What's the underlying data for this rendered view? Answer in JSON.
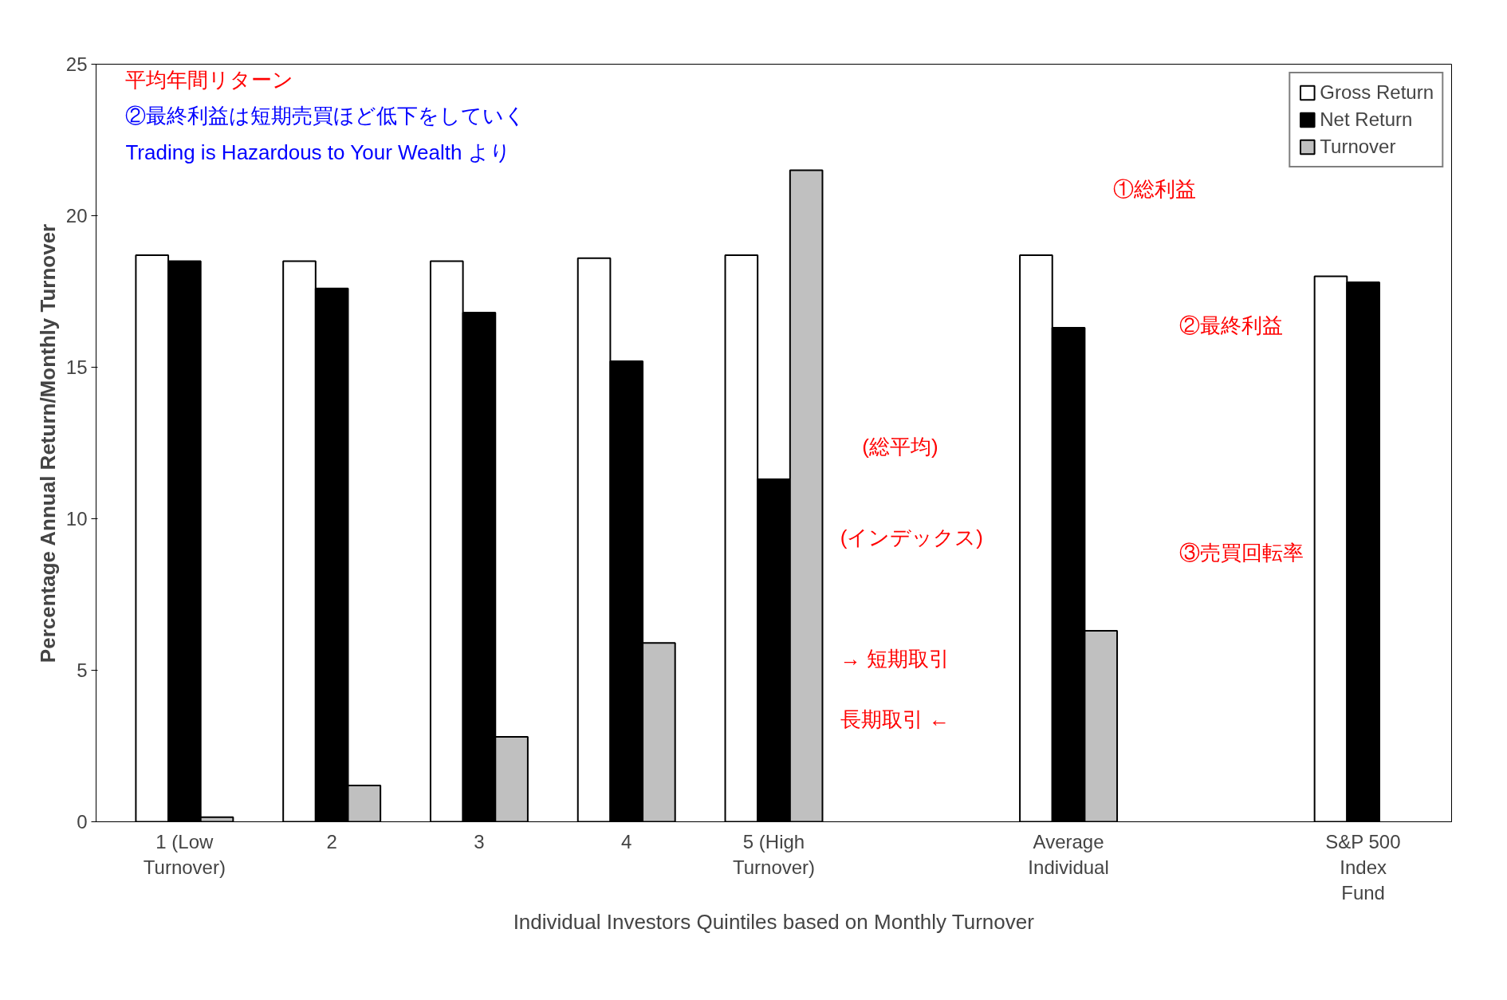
{
  "chart_data": {
    "type": "bar",
    "xlabel": "Individual Investors Quintiles based on Monthly Turnover",
    "ylabel": "Percentage Annual Return/Monthly Turnover",
    "categories": [
      "1 (Low\nTurnover)",
      "2",
      "3",
      "4",
      "5 (High\nTurnover)",
      null,
      "Average\nIndividual",
      null,
      "S&P 500\nIndex\nFund"
    ],
    "series": [
      {
        "name": "Gross Return",
        "color": "#ffffff",
        "values": [
          18.7,
          18.5,
          18.5,
          18.6,
          18.7,
          null,
          18.7,
          null,
          18.0
        ]
      },
      {
        "name": "Net Return",
        "color": "#000000",
        "values": [
          18.5,
          17.6,
          16.8,
          15.2,
          11.3,
          null,
          16.3,
          null,
          17.8
        ]
      },
      {
        "name": "Turnover",
        "color": "#c0c0c0",
        "values": [
          0.15,
          1.2,
          2.8,
          5.9,
          21.5,
          null,
          6.3,
          null,
          null
        ]
      }
    ],
    "ylim": [
      0,
      25
    ],
    "yticks": [
      0,
      5,
      10,
      15,
      20,
      25
    ],
    "grid": false,
    "legend": "top right",
    "annotations": [
      "平均年間リターン",
      "②最終利益は短期売買ほど低下をしていく",
      "①総利益",
      "②最終利益",
      "③売買回転率",
      "長期取引 ←",
      "→ 短期取引",
      "(総平均)",
      "Trading is Hazardous to Your Wealth より",
      "(インデックス)"
    ]
  }
}
